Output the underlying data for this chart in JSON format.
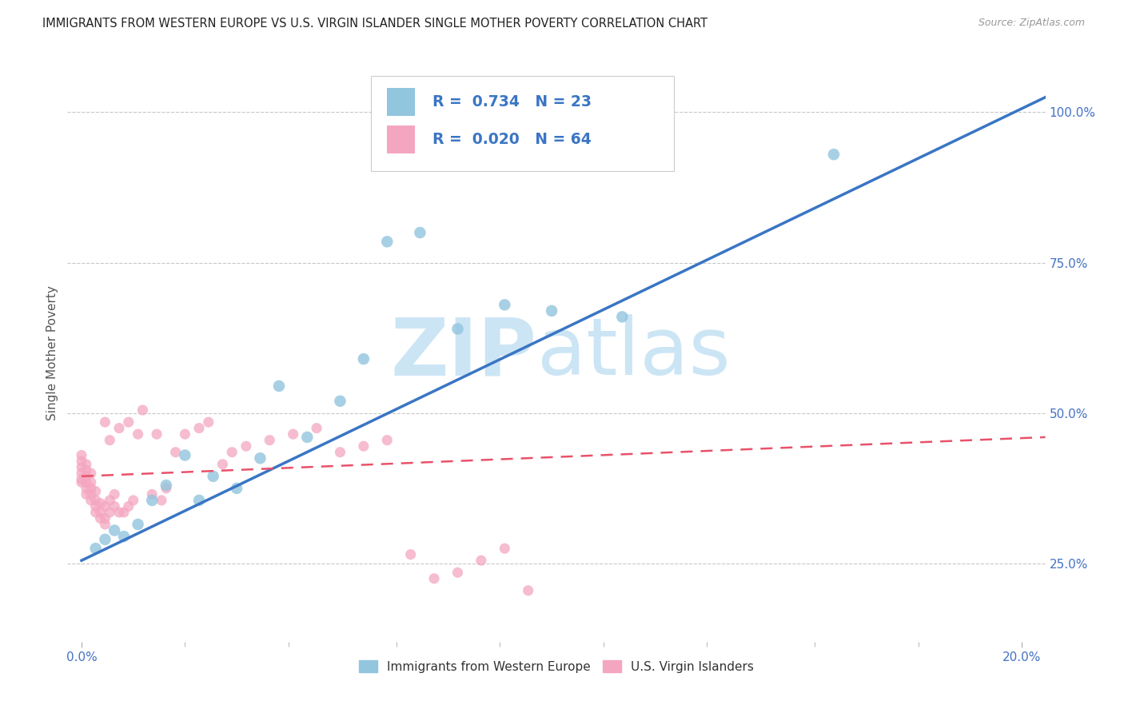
{
  "title": "IMMIGRANTS FROM WESTERN EUROPE VS U.S. VIRGIN ISLANDER SINGLE MOTHER POVERTY CORRELATION CHART",
  "source": "Source: ZipAtlas.com",
  "ylabel_left": "Single Mother Poverty",
  "ylabel_right_ticks": [
    "25.0%",
    "50.0%",
    "75.0%",
    "100.0%"
  ],
  "ylabel_right_tick_vals": [
    0.25,
    0.5,
    0.75,
    1.0
  ],
  "xlabel_ticks": [
    "0.0%",
    "",
    "",
    "",
    "",
    "",
    "",
    "",
    "",
    "20.0%"
  ],
  "xlabel_tick_vals": [
    0.0,
    0.022,
    0.044,
    0.067,
    0.089,
    0.111,
    0.133,
    0.156,
    0.178,
    0.2
  ],
  "xlim": [
    -0.003,
    0.205
  ],
  "ylim": [
    0.12,
    1.08
  ],
  "legend_blue_R": "0.734",
  "legend_blue_N": "23",
  "legend_pink_R": "0.020",
  "legend_pink_N": "64",
  "legend_label_blue": "Immigrants from Western Europe",
  "legend_label_pink": "U.S. Virgin Islanders",
  "blue_color": "#92c5de",
  "pink_color": "#f4a6c0",
  "blue_line_color": "#3a75c4",
  "pink_line_color": "#e8526a",
  "watermark_zip": "ZIP",
  "watermark_atlas": "atlas",
  "watermark_color": "#cce5f5",
  "blue_x": [
    0.003,
    0.005,
    0.007,
    0.009,
    0.012,
    0.015,
    0.018,
    0.022,
    0.025,
    0.028,
    0.033,
    0.038,
    0.042,
    0.048,
    0.055,
    0.06,
    0.065,
    0.072,
    0.08,
    0.09,
    0.1,
    0.115,
    0.16
  ],
  "blue_y": [
    0.275,
    0.29,
    0.305,
    0.295,
    0.315,
    0.355,
    0.38,
    0.43,
    0.355,
    0.395,
    0.375,
    0.425,
    0.545,
    0.46,
    0.52,
    0.59,
    0.785,
    0.8,
    0.64,
    0.68,
    0.67,
    0.66,
    0.93
  ],
  "blue_trendline_x": [
    0.0,
    0.205
  ],
  "blue_trendline_y": [
    0.255,
    1.025
  ],
  "pink_x": [
    0.0,
    0.0,
    0.0,
    0.0,
    0.0,
    0.0,
    0.001,
    0.001,
    0.001,
    0.001,
    0.001,
    0.001,
    0.002,
    0.002,
    0.002,
    0.002,
    0.002,
    0.003,
    0.003,
    0.003,
    0.003,
    0.004,
    0.004,
    0.004,
    0.005,
    0.005,
    0.005,
    0.005,
    0.006,
    0.006,
    0.006,
    0.007,
    0.007,
    0.008,
    0.008,
    0.009,
    0.01,
    0.01,
    0.011,
    0.012,
    0.013,
    0.015,
    0.016,
    0.017,
    0.018,
    0.02,
    0.022,
    0.025,
    0.027,
    0.03,
    0.032,
    0.035,
    0.04,
    0.045,
    0.05,
    0.055,
    0.06,
    0.065,
    0.07,
    0.075,
    0.08,
    0.085,
    0.09,
    0.095
  ],
  "pink_y": [
    0.385,
    0.39,
    0.4,
    0.41,
    0.42,
    0.43,
    0.365,
    0.375,
    0.385,
    0.395,
    0.405,
    0.415,
    0.355,
    0.365,
    0.375,
    0.385,
    0.4,
    0.335,
    0.345,
    0.355,
    0.37,
    0.325,
    0.335,
    0.35,
    0.315,
    0.325,
    0.345,
    0.485,
    0.335,
    0.355,
    0.455,
    0.345,
    0.365,
    0.335,
    0.475,
    0.335,
    0.345,
    0.485,
    0.355,
    0.465,
    0.505,
    0.365,
    0.465,
    0.355,
    0.375,
    0.435,
    0.465,
    0.475,
    0.485,
    0.415,
    0.435,
    0.445,
    0.455,
    0.465,
    0.475,
    0.435,
    0.445,
    0.455,
    0.265,
    0.225,
    0.235,
    0.255,
    0.275,
    0.205
  ],
  "pink_trendline_x": [
    0.0,
    0.205
  ],
  "pink_trendline_y": [
    0.395,
    0.46
  ],
  "dot_size_blue": 110,
  "dot_size_pink": 90,
  "background_color": "#ffffff",
  "grid_color": "#c8c8c8",
  "title_color": "#222222",
  "axis_label_color": "#555555",
  "right_tick_color": "#4472c4",
  "bottom_tick_color": "#4472c4",
  "legend_box_color": "#f5f5f5",
  "legend_border_color": "#cccccc"
}
